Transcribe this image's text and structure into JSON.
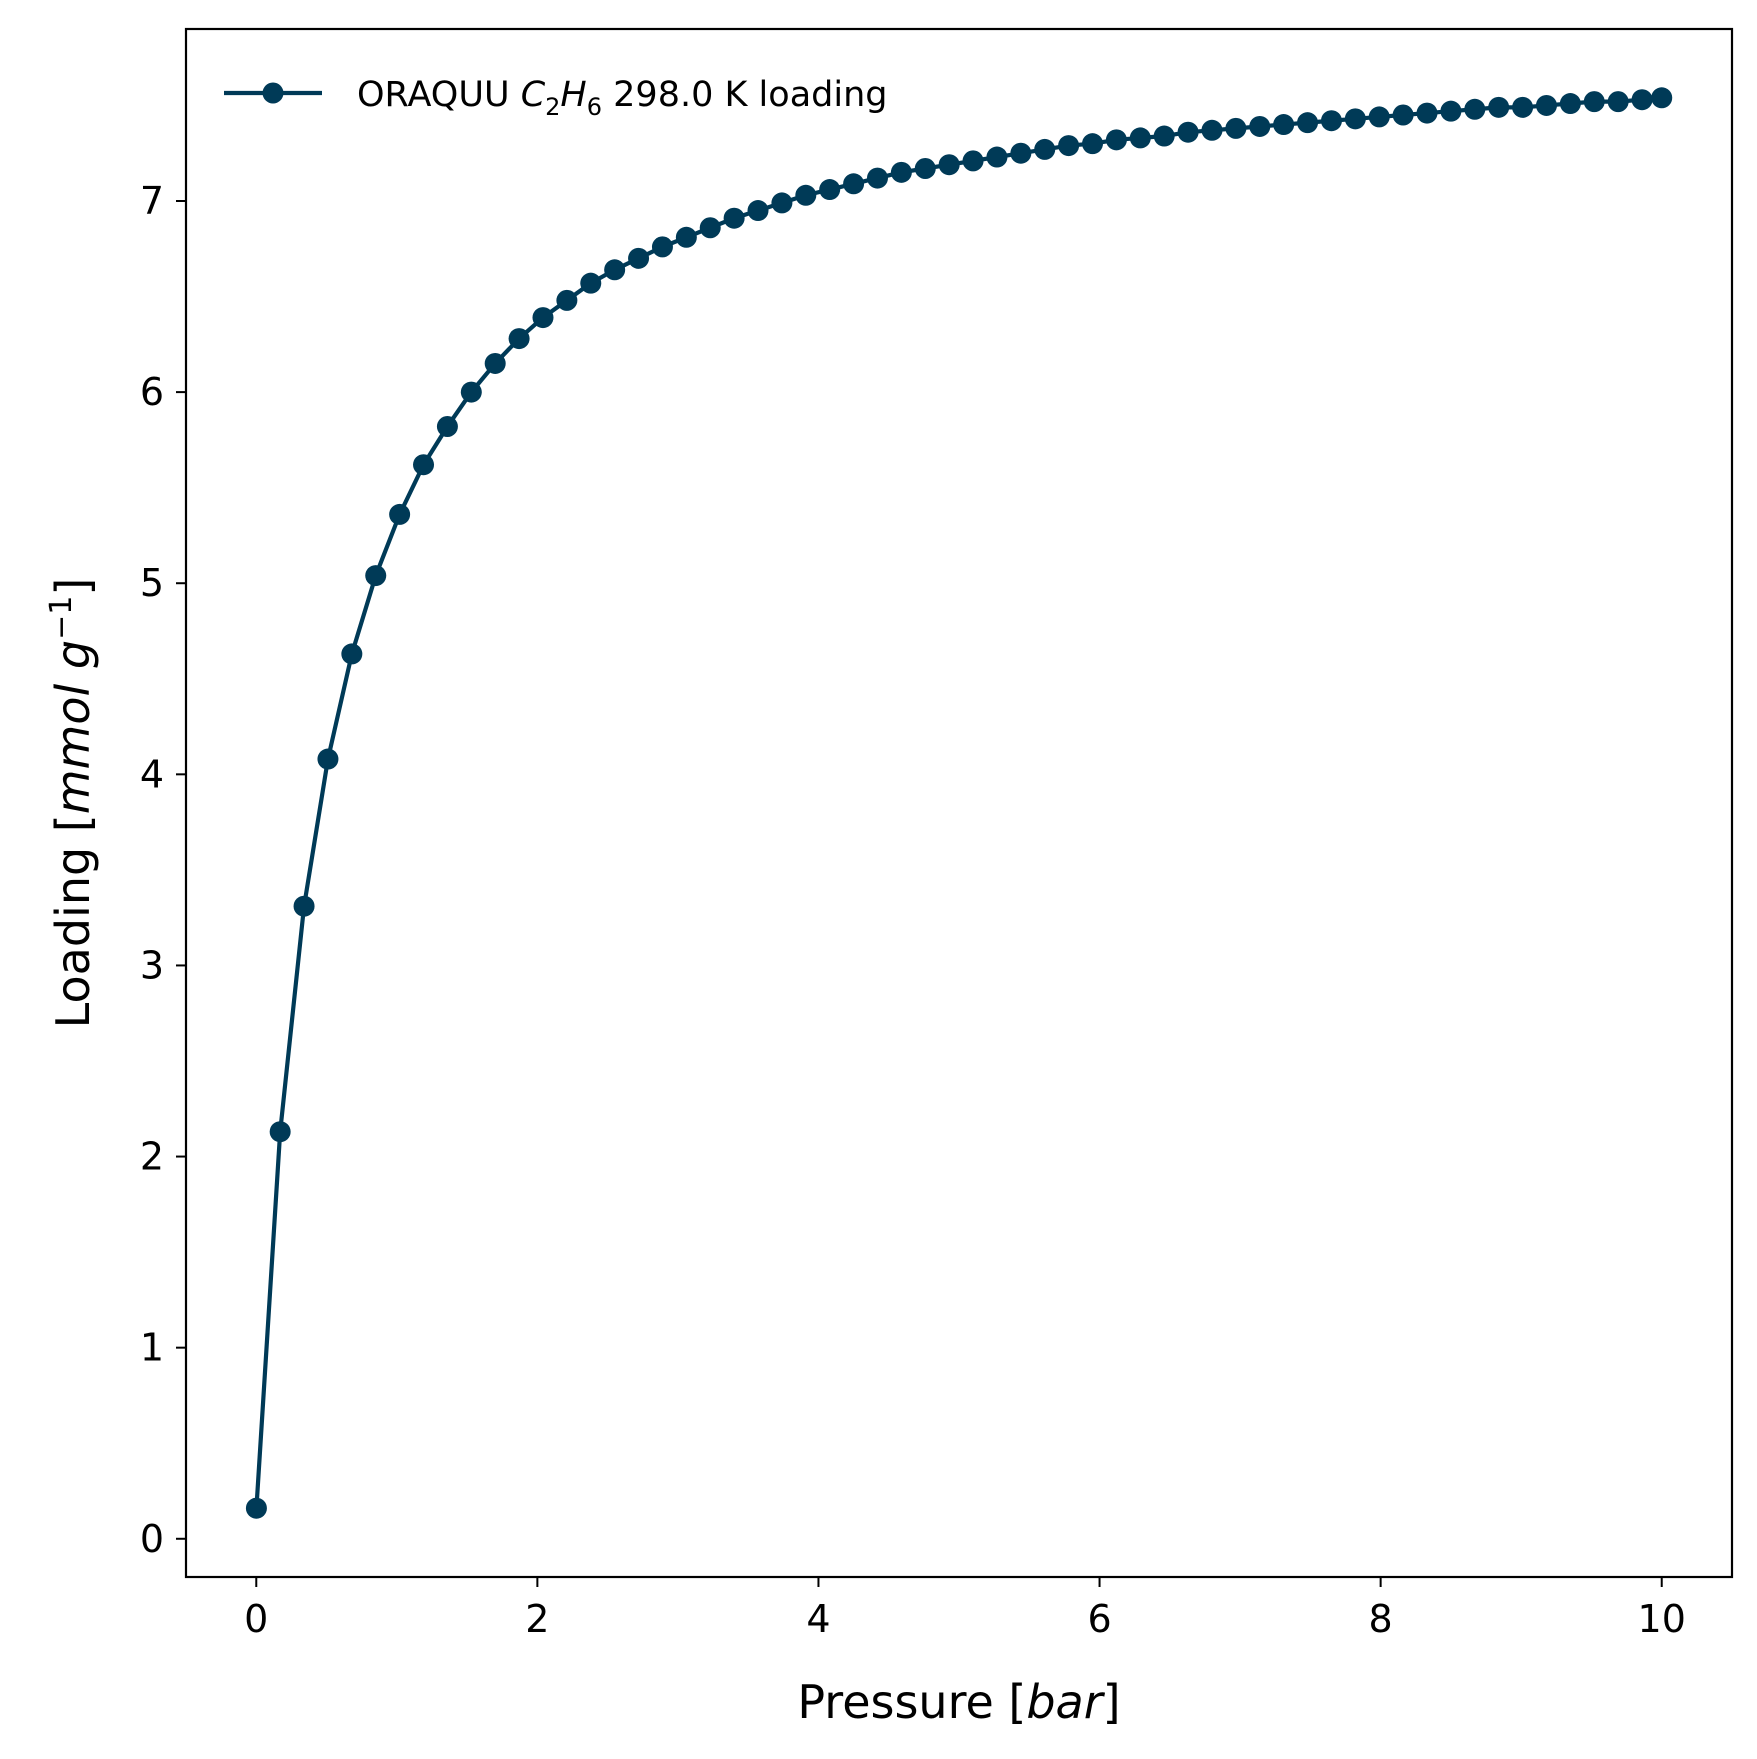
{
  "chart_data": {
    "type": "line",
    "title": "",
    "xlabel": {
      "prefix": "Pressure [",
      "unit": "bar",
      "suffix": "]"
    },
    "ylabel": {
      "prefix": "Loading [",
      "unit": "mmol",
      "unit2": "g",
      "sup": "−1",
      "suffix": "]"
    },
    "xlim": [
      -0.5,
      10.5
    ],
    "ylim": [
      -0.2,
      7.9
    ],
    "xticks": [
      0,
      2,
      4,
      6,
      8,
      10
    ],
    "yticks": [
      0,
      1,
      2,
      3,
      4,
      5,
      6,
      7
    ],
    "grid": false,
    "legend_position": "top-left",
    "colors": {
      "series": "#003a57"
    },
    "series": [
      {
        "name": "ORAQUU C2H6 298.0 K loading",
        "legend": {
          "prefix": "ORAQUU ",
          "c": "C",
          "c_sub": "2",
          "h": "H",
          "h_sub": "6",
          "suffix": " 298.0 K loading"
        },
        "x": [
          0.001,
          0.17,
          0.34,
          0.51,
          0.68,
          0.85,
          1.02,
          1.19,
          1.36,
          1.53,
          1.7,
          1.87,
          2.04,
          2.21,
          2.38,
          2.55,
          2.72,
          2.89,
          3.06,
          3.23,
          3.4,
          3.57,
          3.74,
          3.91,
          4.08,
          4.25,
          4.42,
          4.59,
          4.76,
          4.93,
          5.1,
          5.27,
          5.44,
          5.61,
          5.78,
          5.95,
          6.12,
          6.29,
          6.46,
          6.63,
          6.8,
          6.97,
          7.14,
          7.31,
          7.48,
          7.65,
          7.82,
          7.99,
          8.16,
          8.33,
          8.5,
          8.67,
          8.84,
          9.01,
          9.18,
          9.35,
          9.52,
          9.69,
          9.86,
          10.0
        ],
        "y": [
          0.16,
          2.13,
          3.31,
          4.08,
          4.63,
          5.04,
          5.36,
          5.62,
          5.82,
          6.0,
          6.15,
          6.28,
          6.39,
          6.48,
          6.57,
          6.64,
          6.7,
          6.76,
          6.81,
          6.86,
          6.91,
          6.95,
          6.99,
          7.03,
          7.06,
          7.09,
          7.12,
          7.15,
          7.17,
          7.19,
          7.21,
          7.23,
          7.25,
          7.27,
          7.29,
          7.3,
          7.32,
          7.33,
          7.34,
          7.36,
          7.37,
          7.38,
          7.39,
          7.4,
          7.41,
          7.42,
          7.43,
          7.44,
          7.45,
          7.46,
          7.47,
          7.48,
          7.49,
          7.49,
          7.5,
          7.51,
          7.52,
          7.52,
          7.53,
          7.54
        ]
      }
    ]
  }
}
